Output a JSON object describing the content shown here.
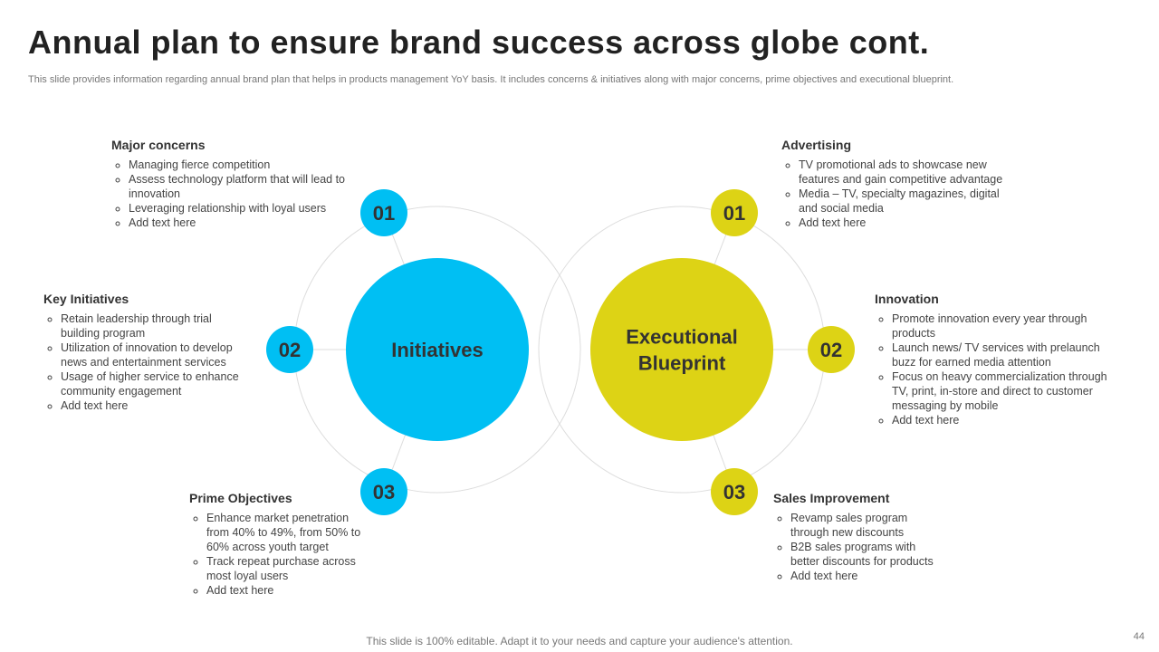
{
  "header": {
    "title": "Annual plan to ensure brand success across globe cont.",
    "subtitle": "This slide provides information regarding annual brand plan that helps in products management YoY basis. It includes concerns & initiatives along with major concerns, prime objectives and executional blueprint."
  },
  "hubs": [
    {
      "label_lines": [
        "Initiatives"
      ],
      "nodes": [
        "01",
        "02",
        "03"
      ]
    },
    {
      "label_lines": [
        "Executional",
        "Blueprint"
      ],
      "nodes": [
        "01",
        "02",
        "03"
      ]
    }
  ],
  "sections": [
    {
      "heading": "Major concerns",
      "items": [
        "Managing fierce competition",
        "Assess technology platform that will lead to innovation",
        "Leveraging  relationship with loyal users",
        "Add text here"
      ]
    },
    {
      "heading": "Key Initiatives",
      "items": [
        "Retain leadership through trial building program",
        "Utilization of innovation to develop news and entertainment services",
        "Usage of higher service to enhance community engagement",
        "Add text here"
      ]
    },
    {
      "heading": "Prime Objectives",
      "items": [
        "Enhance market penetration from 40% to 49%, from 50% to 60% across youth target",
        "Track repeat purchase across most loyal users",
        "Add text here"
      ]
    },
    {
      "heading": "Advertising",
      "items": [
        "TV promotional ads to showcase new features and gain competitive advantage",
        "Media – TV, specialty magazines, digital and social media",
        "Add text here"
      ]
    },
    {
      "heading": "Innovation",
      "items": [
        "Promote innovation every year through products",
        "Launch news/ TV services with prelaunch buzz for earned media attention",
        "Focus on heavy commercialization through TV, print, in-store and direct to customer messaging by mobile",
        "Add text here"
      ]
    },
    {
      "heading": "Sales Improvement",
      "items": [
        "Revamp sales program through new discounts",
        "B2B sales programs with better discounts for products",
        "Add text here"
      ]
    }
  ],
  "footer": {
    "note": "This slide is 100% editable. Adapt it to your needs and capture your audience's attention.",
    "page": "44"
  }
}
